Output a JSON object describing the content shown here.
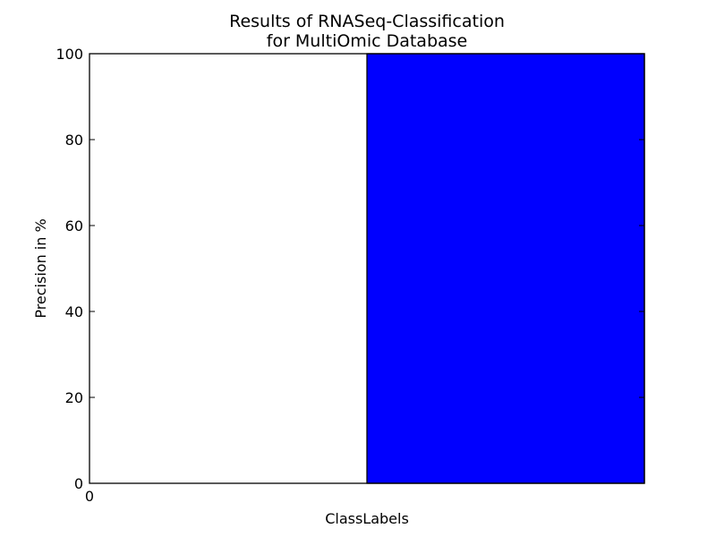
{
  "chart_data": {
    "type": "bar",
    "title": "Results of RNASeq-Classification\nfor MultiOmic Database",
    "xlabel": "ClassLabels",
    "ylabel": "Precision in %",
    "ylim": [
      0,
      100
    ],
    "yticks": [
      "0",
      "20",
      "40",
      "60",
      "80",
      "100"
    ],
    "ytick_values": [
      0,
      20,
      40,
      60,
      80,
      100
    ],
    "xticks": [
      "0"
    ],
    "xlim": [
      0,
      2
    ],
    "bars": [
      {
        "x_start": 1,
        "x_end": 2,
        "value": 100,
        "color": "#0000ff"
      }
    ],
    "grid": false,
    "legend": false
  }
}
